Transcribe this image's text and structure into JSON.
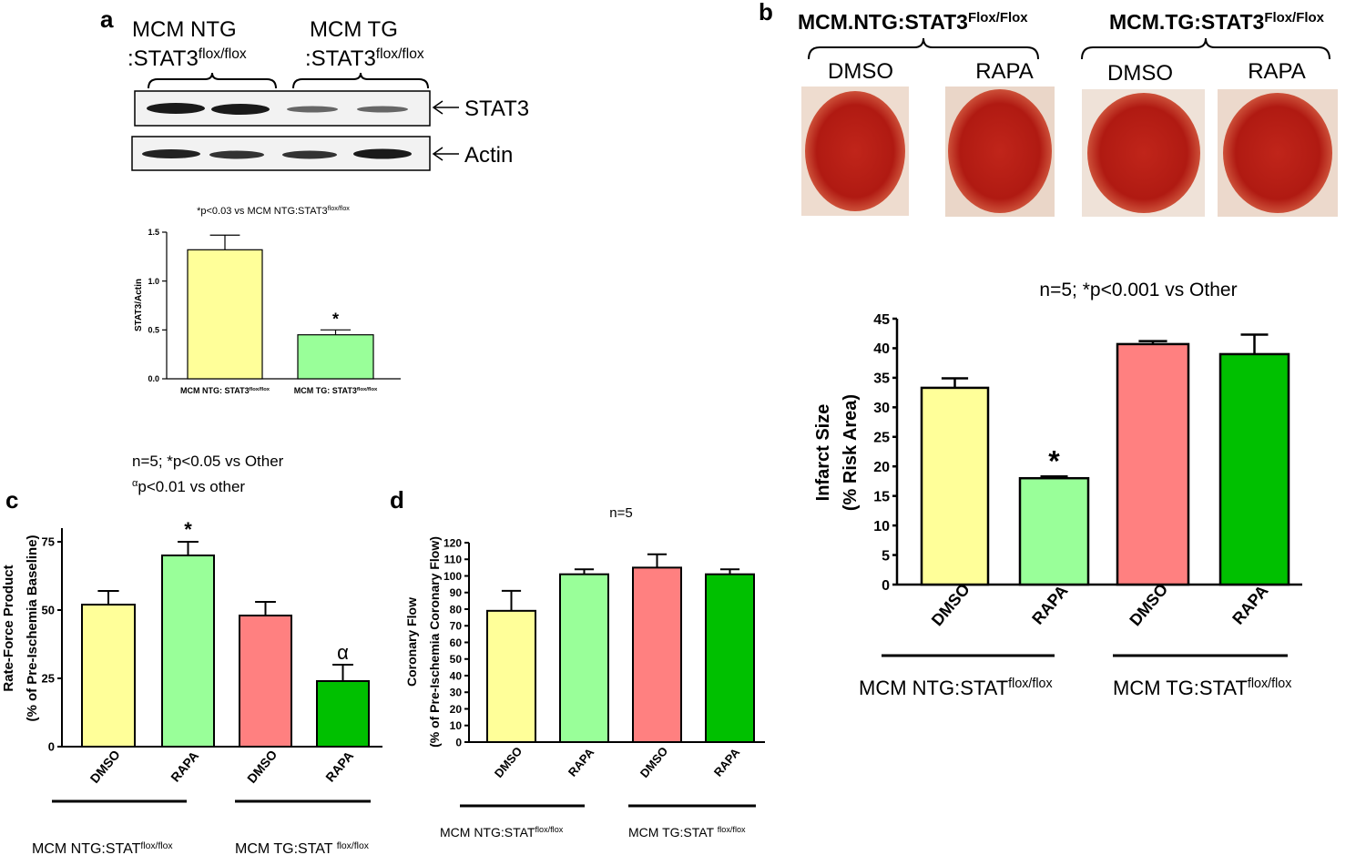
{
  "panel_a": {
    "label": "a",
    "groups": [
      {
        "line1": "MCM NTG",
        "line2": ":STAT3",
        "sup": "flox/flox"
      },
      {
        "line1": "MCM TG",
        "line2": ":STAT3",
        "sup": "flox/flox"
      }
    ],
    "blot_rows": [
      "STAT3",
      "Actin"
    ]
  },
  "panel_b": {
    "label": "b",
    "groups": [
      {
        "name": "MCM.NTG:STAT3",
        "sup": "Flox/Flox"
      },
      {
        "name": "MCM.TG:STAT3",
        "sup": "Flox/Flox"
      }
    ],
    "treatments": [
      "DMSO",
      "RAPA",
      "DMSO",
      "RAPA"
    ]
  },
  "panel_c": {
    "label": "c"
  },
  "panel_d": {
    "label": "d"
  },
  "chart_data": [
    {
      "type": "bar",
      "annotation": [
        {
          "text": "*p<0.03 vs MCM NTG:STAT3"
        },
        {
          "sup": "flox/flox"
        }
      ],
      "y_label": [
        "STAT3/Actin"
      ],
      "categories": [
        "MCM NTG: STAT3",
        "MCM TG: STAT3"
      ],
      "category_sups": [
        "flox/flox",
        "flox/flox"
      ],
      "values": [
        1.32,
        0.45
      ],
      "errors": [
        0.15,
        0.05
      ],
      "colors": [
        "#ffff99",
        "#99ff99"
      ],
      "bar_labels": [
        null,
        "*"
      ],
      "ylim": [
        0,
        1.5
      ],
      "yticks": [
        {
          "value": 0,
          "label": "0.0"
        },
        0.5,
        {
          "value": 1,
          "label": "1.0"
        },
        1.5
      ]
    },
    {
      "type": "bar",
      "annotation": [
        {
          "text": "n=5; *p<0.001 vs Other"
        }
      ],
      "y_label": [
        "Infarct Size",
        "(% Risk Area)"
      ],
      "categories": [
        "DMSO",
        "RAPA",
        "DMSO",
        "RAPA"
      ],
      "values": [
        33.3,
        18,
        40.7,
        39
      ],
      "errors": [
        1.6,
        0.3,
        0.5,
        3.3
      ],
      "colors": [
        "#ffff99",
        "#99ff99",
        "#ff8080",
        "#00c000"
      ],
      "bar_labels": [
        null,
        "*",
        null,
        null
      ],
      "groups": [
        {
          "name": "MCM NTG:STAT",
          "sup": "flox/flox"
        },
        {
          "name": "MCM TG:STAT",
          "sup": "flox/flox"
        }
      ],
      "ylim": [
        0,
        45
      ],
      "yticks": [
        0,
        5,
        10,
        15,
        20,
        25,
        30,
        35,
        40,
        45
      ]
    },
    {
      "type": "bar",
      "annotation": [
        {
          "text": "n=5; *p<0.05 vs Other"
        }
      ],
      "annotation2": [
        {
          "sup": "α"
        },
        {
          "text": "p<0.01 vs other"
        }
      ],
      "y_label": [
        "Rate-Force Product",
        "(% of Pre-Ischemia Baseline)"
      ],
      "categories": [
        "DMSO",
        "RAPA",
        "DMSO",
        "RAPA"
      ],
      "values": [
        52,
        70,
        48,
        24
      ],
      "errors": [
        5,
        5,
        5,
        6
      ],
      "colors": [
        "#ffff99",
        "#99ff99",
        "#ff8080",
        "#00c000"
      ],
      "bar_labels": [
        null,
        "*",
        null,
        "α"
      ],
      "groups": [
        {
          "name": "MCM NTG:STAT",
          "sup": "flox/flox"
        },
        {
          "name": "MCM TG:STAT ",
          "sup": "flox/flox"
        }
      ],
      "ylim": [
        0,
        80
      ],
      "yticks": [
        0,
        25,
        50,
        75
      ]
    },
    {
      "type": "bar",
      "annotation": [
        {
          "text": "n=5"
        }
      ],
      "y_label": [
        "Coronary Flow",
        "(% of Pre-Ischemia Coronary Flow)"
      ],
      "categories": [
        "DMSO",
        "RAPA",
        "DMSO",
        "RAPA"
      ],
      "values": [
        79,
        101,
        105,
        101
      ],
      "errors": [
        12,
        3,
        8,
        3
      ],
      "colors": [
        "#ffff99",
        "#99ff99",
        "#ff8080",
        "#00c000"
      ],
      "bar_labels": [
        null,
        null,
        null,
        null
      ],
      "groups": [
        {
          "name": "MCM NTG:STAT",
          "sup": "flox/flox"
        },
        {
          "name": "MCM TG:STAT ",
          "sup": "flox/flox"
        }
      ],
      "ylim": [
        0,
        120
      ],
      "yticks": [
        0,
        10,
        20,
        30,
        40,
        50,
        60,
        70,
        80,
        90,
        100,
        110,
        120
      ]
    }
  ]
}
